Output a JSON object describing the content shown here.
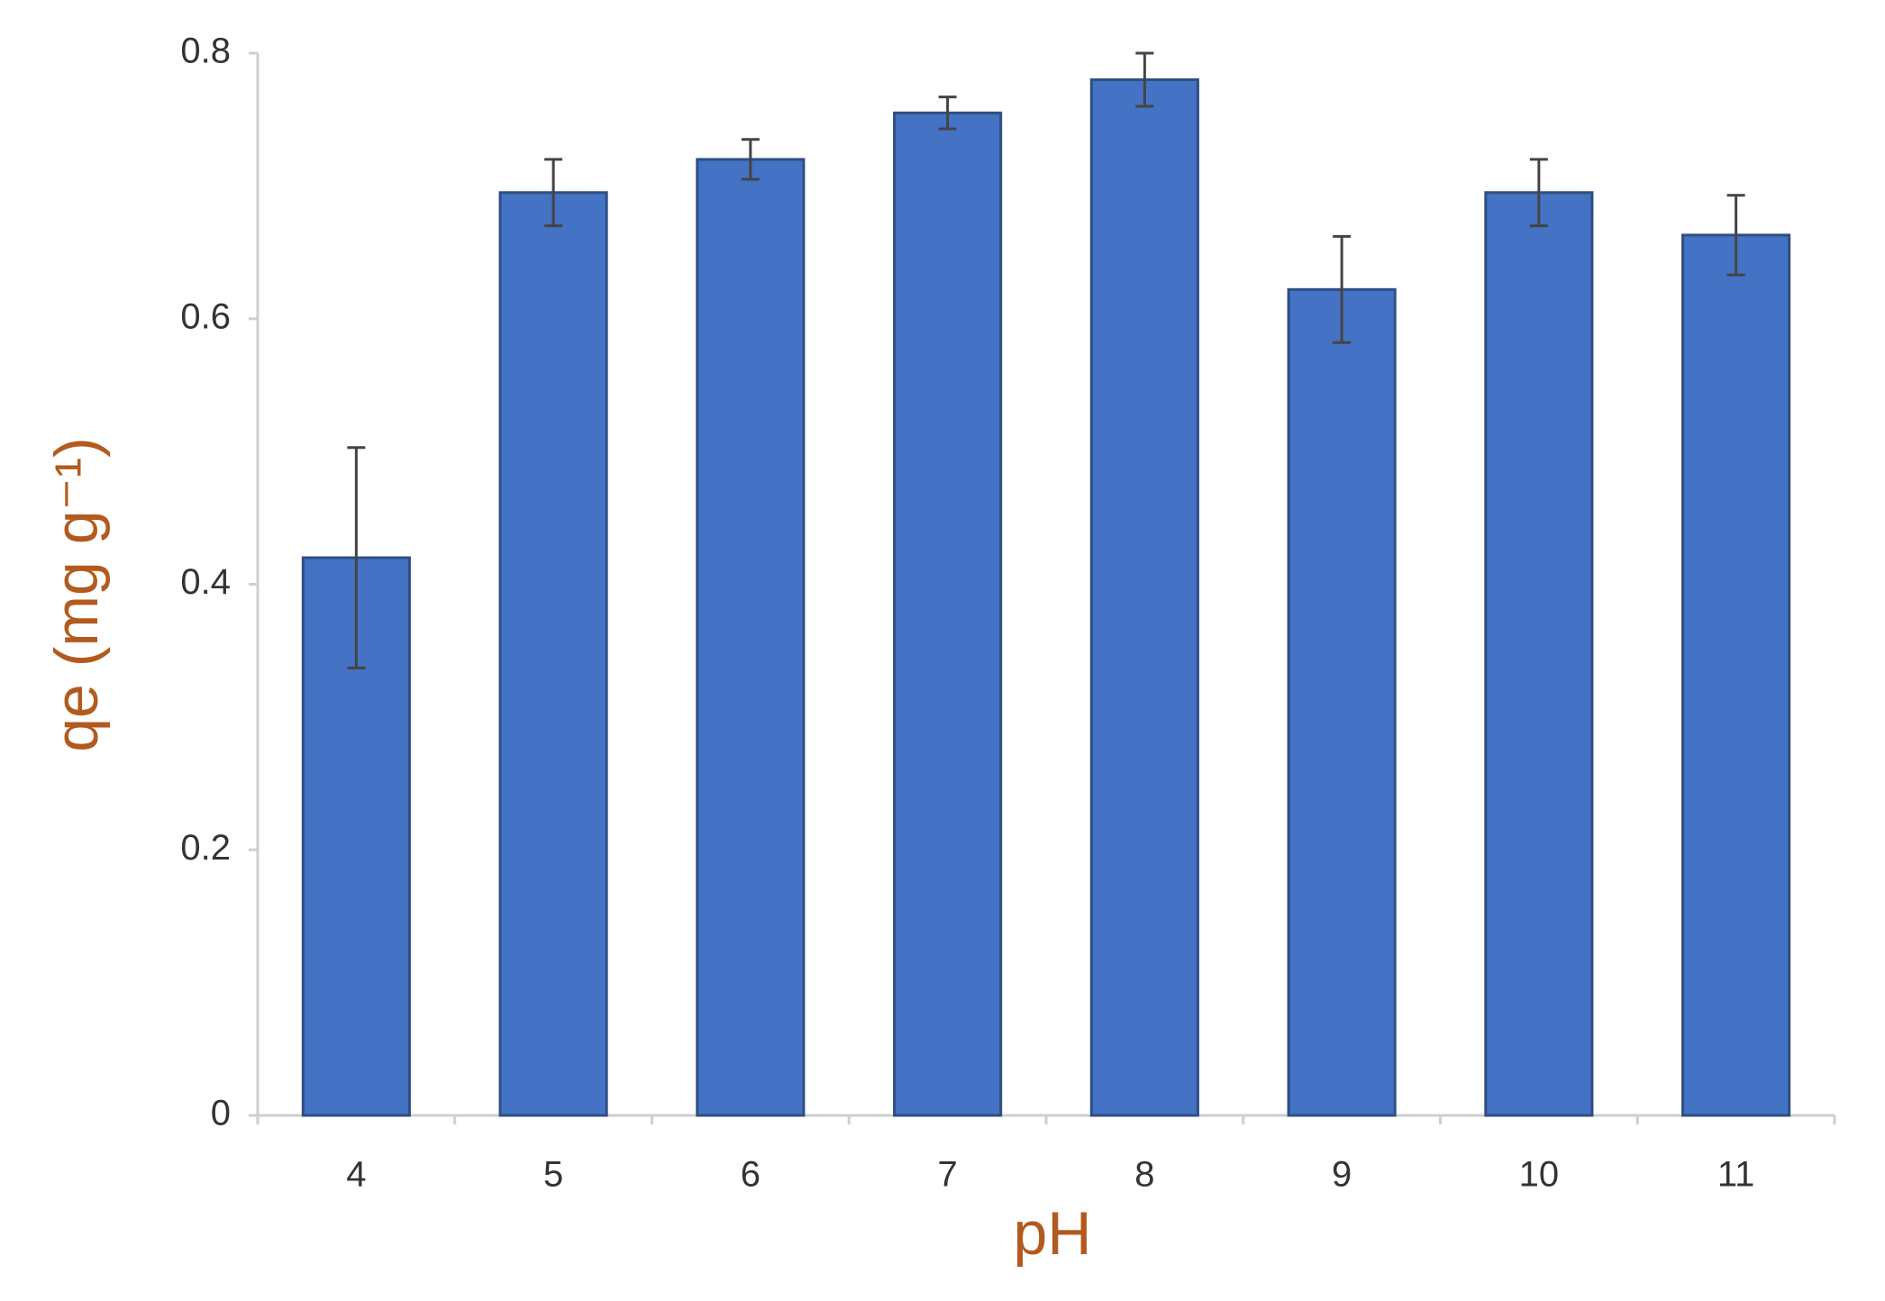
{
  "chart_data": {
    "type": "bar",
    "x_label": "pH",
    "y_label": "qe (mg g⁻¹)",
    "categories": [
      "4",
      "5",
      "6",
      "7",
      "8",
      "9",
      "10",
      "11"
    ],
    "values": [
      0.42,
      0.695,
      0.72,
      0.755,
      0.78,
      0.622,
      0.695,
      0.663
    ],
    "errors": [
      0.083,
      0.025,
      0.015,
      0.012,
      0.02,
      0.04,
      0.025,
      0.03
    ],
    "color": "#4472c4",
    "ylim": [
      0,
      0.8
    ],
    "yticks": [
      0,
      0.2,
      0.4,
      0.6,
      0.8
    ],
    "grid": false
  }
}
